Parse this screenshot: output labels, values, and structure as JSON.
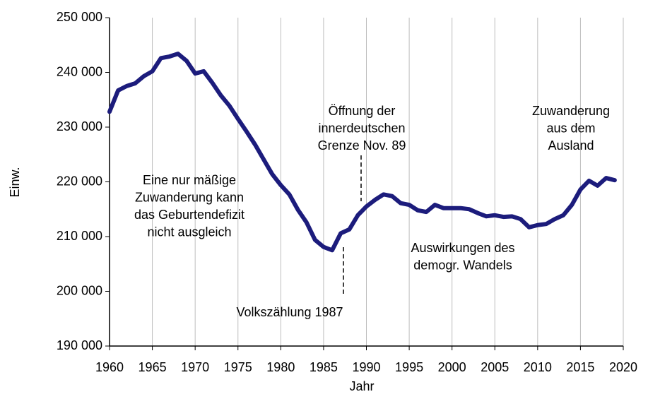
{
  "chart_data": {
    "type": "line",
    "x_label": "Jahr",
    "y_label": "Einw.",
    "x": [
      1960,
      1961,
      1962,
      1963,
      1964,
      1965,
      1966,
      1967,
      1968,
      1969,
      1970,
      1971,
      1972,
      1973,
      1974,
      1975,
      1976,
      1977,
      1978,
      1979,
      1980,
      1981,
      1982,
      1983,
      1984,
      1985,
      1986,
      1987,
      1988,
      1989,
      1990,
      1991,
      1992,
      1993,
      1994,
      1995,
      1996,
      1997,
      1998,
      1999,
      2000,
      2001,
      2002,
      2003,
      2004,
      2005,
      2006,
      2007,
      2008,
      2009,
      2010,
      2011,
      2012,
      2013,
      2014,
      2015,
      2016,
      2017,
      2018,
      2019
    ],
    "series": [
      {
        "color": "#1c1c7c",
        "values": [
          232800,
          236700,
          237500,
          238000,
          239300,
          240200,
          242600,
          242900,
          243400,
          242100,
          239800,
          240200,
          238100,
          235800,
          233900,
          231500,
          229200,
          226800,
          224100,
          221400,
          219400,
          217700,
          214900,
          212600,
          209400,
          208100,
          207500,
          210600,
          211300,
          213900,
          215500,
          216700,
          217700,
          217400,
          216100,
          215800,
          214800,
          214500,
          215800,
          215200,
          215200,
          215200,
          215000,
          214300,
          213700,
          213900,
          213600,
          213700,
          213200,
          211700,
          212100,
          212300,
          213200,
          213900,
          215800,
          218600,
          220200,
          219300,
          220700,
          220300
        ]
      }
    ],
    "xlim": [
      1960,
      2020
    ],
    "xticks": [
      1960,
      1965,
      1970,
      1975,
      1980,
      1985,
      1990,
      1995,
      2000,
      2005,
      2010,
      2015,
      2020
    ],
    "ylim": [
      190000,
      250000
    ],
    "yticks": [
      {
        "value": 190000,
        "label": "190 000"
      },
      {
        "value": 200000,
        "label": "200 000"
      },
      {
        "value": 210000,
        "label": "210 000"
      },
      {
        "value": 220000,
        "label": "220 000"
      },
      {
        "value": 230000,
        "label": "230 000"
      },
      {
        "value": 240000,
        "label": "240 000"
      },
      {
        "value": 250000,
        "label": "250 000"
      }
    ],
    "grid_x": true,
    "annotations": [
      {
        "lines": [
          "Öffnung der",
          "innerdeutschen",
          "Grenze Nov. 89"
        ]
      },
      {
        "lines": [
          "Zuwanderung",
          "aus dem",
          "Ausland"
        ]
      },
      {
        "lines": [
          "Eine nur mäßige",
          "Zuwanderung kann",
          "das Geburtendefizit",
          "nicht ausgleich"
        ]
      },
      {
        "lines": [
          "Auswirkungen des",
          "demogr. Wandels"
        ]
      },
      {
        "lines": [
          "Volkszählung 1987"
        ]
      }
    ]
  }
}
